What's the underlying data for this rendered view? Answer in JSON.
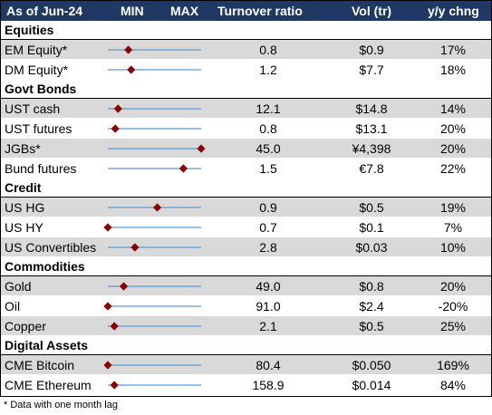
{
  "chart_data": {
    "type": "table",
    "columns": {
      "as_of": "As of Jun-24",
      "min": "MIN",
      "max": "MAX",
      "turnover": "Turnover ratio",
      "vol": "Vol (tr)",
      "yoy": "y/y chng"
    },
    "sections": [
      {
        "name": "Equities",
        "rows": [
          {
            "name": "EM Equity*",
            "position": 0.22,
            "turnover": "0.8",
            "vol": "$0.9",
            "yoy": "17%"
          },
          {
            "name": "DM Equity*",
            "position": 0.25,
            "turnover": "1.2",
            "vol": "$7.7",
            "yoy": "18%"
          }
        ]
      },
      {
        "name": "Govt Bonds",
        "rows": [
          {
            "name": "UST cash",
            "position": 0.11,
            "turnover": "12.1",
            "vol": "$14.8",
            "yoy": "14%"
          },
          {
            "name": "UST futures",
            "position": 0.08,
            "turnover": "0.8",
            "vol": "$13.1",
            "yoy": "20%"
          },
          {
            "name": "JGBs*",
            "position": 1.0,
            "turnover": "45.0",
            "vol": "¥4,398",
            "yoy": "20%"
          },
          {
            "name": "Bund futures",
            "position": 0.81,
            "turnover": "1.5",
            "vol": "€7.8",
            "yoy": "22%"
          }
        ]
      },
      {
        "name": "Credit",
        "rows": [
          {
            "name": "US HG",
            "position": 0.53,
            "turnover": "0.9",
            "vol": "$0.5",
            "yoy": "19%"
          },
          {
            "name": "US HY",
            "position": 0.0,
            "turnover": "0.7",
            "vol": "$0.1",
            "yoy": "7%"
          },
          {
            "name": "US Convertibles",
            "position": 0.29,
            "turnover": "2.8",
            "vol": "$0.03",
            "yoy": "10%"
          }
        ]
      },
      {
        "name": "Commodities",
        "rows": [
          {
            "name": "Gold",
            "position": 0.17,
            "turnover": "49.0",
            "vol": "$0.8",
            "yoy": "20%"
          },
          {
            "name": "Oil",
            "position": 0.0,
            "turnover": "91.0",
            "vol": "$2.4",
            "yoy": "-20%"
          },
          {
            "name": "Copper",
            "position": 0.07,
            "turnover": "2.1",
            "vol": "$0.5",
            "yoy": "25%"
          }
        ]
      },
      {
        "name": "Digital Assets",
        "rows": [
          {
            "name": "CME Bitcoin",
            "position": 0.0,
            "turnover": "80.4",
            "vol": "$0.050",
            "yoy": "169%"
          },
          {
            "name": "CME Ethereum",
            "position": 0.07,
            "turnover": "158.9",
            "vol": "$0.014",
            "yoy": "84%"
          }
        ]
      }
    ],
    "colors": {
      "header_bg": "#1f3864",
      "alt_row_bg": "#d9d9d9",
      "range_line": "#5b9bd5",
      "marker": "#8b0000"
    }
  },
  "footnote": "* Data with one month lag"
}
